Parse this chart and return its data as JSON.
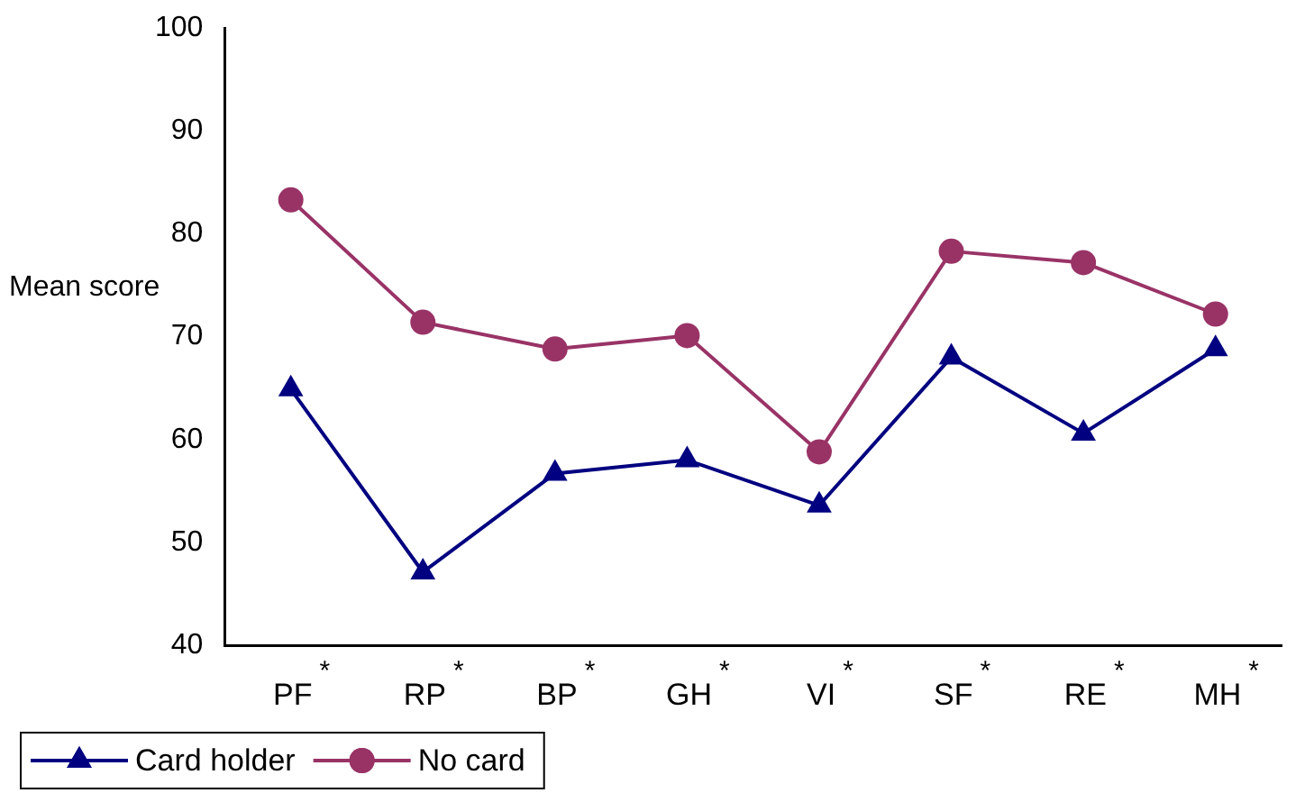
{
  "chart_data": {
    "type": "line",
    "ylabel": "Mean score",
    "categories": [
      "PF$^{*}$",
      "RP$^{*}$",
      "BP$^{*}$",
      "GH$^{*}$",
      "VI$^{*}$",
      "SF$^{*}$",
      "RE$^{*}$",
      "MH$^{*}$"
    ],
    "series": [
      {
        "name": "Card holder",
        "color": "#000080",
        "marker": "triangle",
        "values": [
          64.9,
          47.1,
          56.7,
          58.0,
          53.6,
          68.0,
          60.6,
          68.8
        ]
      },
      {
        "name": "No card",
        "color": "#993366",
        "marker": "circle",
        "values": [
          83.3,
          71.4,
          68.8,
          70.1,
          58.8,
          78.3,
          77.2,
          72.2
        ]
      }
    ],
    "ylim": [
      40,
      100
    ],
    "yticks": [
      40,
      50,
      60,
      70,
      80,
      90,
      100
    ],
    "grid": false,
    "legend": "bottom left",
    "line_style": "solid"
  }
}
